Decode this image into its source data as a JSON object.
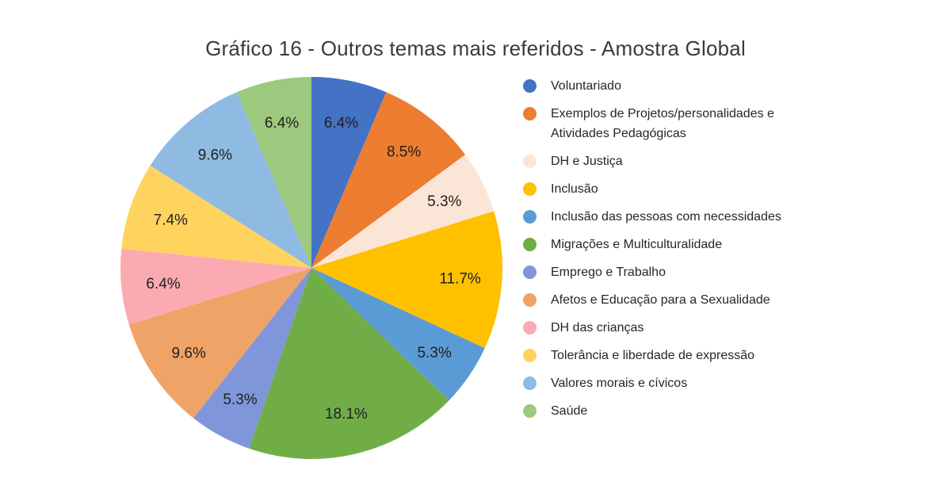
{
  "title": "Gráfico 16 - Outros temas mais referidos - Amostra Global",
  "chart_data": {
    "type": "pie",
    "title": "Gráfico 16 - Outros temas mais referidos - Amostra Global",
    "direction": "clockwise",
    "start_angle_deg": 0,
    "legend_position": "right",
    "data_label_format": "percent",
    "label_text_color": "#212121",
    "slices": [
      {
        "label": "Voluntariado",
        "value": 6.4,
        "pct_label": "6.4%",
        "color": "#4472C4"
      },
      {
        "label": "Exemplos de Projetos/personalidades e Atividades Pedagógicas",
        "value": 8.5,
        "pct_label": "8.5%",
        "color": "#ED7D31"
      },
      {
        "label": "DH e Justiça",
        "value": 5.3,
        "pct_label": "5.3%",
        "color": "#FBE5D6"
      },
      {
        "label": "Inclusão",
        "value": 11.7,
        "pct_label": "11.7%",
        "color": "#FFC000"
      },
      {
        "label": "Inclusão das pessoas com necessidades",
        "value": 5.3,
        "pct_label": "5.3%",
        "color": "#5B9BD5"
      },
      {
        "label": "Migrações e Multiculturalidade",
        "value": 18.1,
        "pct_label": "18.1%",
        "color": "#70AD47"
      },
      {
        "label": "Emprego e Trabalho",
        "value": 5.3,
        "pct_label": "5.3%",
        "color": "#7F96DB"
      },
      {
        "label": "Afetos e Educação para a Sexualidade",
        "value": 9.6,
        "pct_label": "9.6%",
        "color": "#F0A366"
      },
      {
        "label": "DH das crianças",
        "value": 6.4,
        "pct_label": "6.4%",
        "color": "#FBAAB2"
      },
      {
        "label": "Tolerância e liberdade de expressão",
        "value": 7.4,
        "pct_label": "7.4%",
        "color": "#FFD45E"
      },
      {
        "label": "Valores morais e cívicos",
        "value": 9.6,
        "pct_label": "9.6%",
        "color": "#8FBAE2"
      },
      {
        "label": "Saúde",
        "value": 6.4,
        "pct_label": "6.4%",
        "color": "#9DC97E"
      }
    ]
  }
}
